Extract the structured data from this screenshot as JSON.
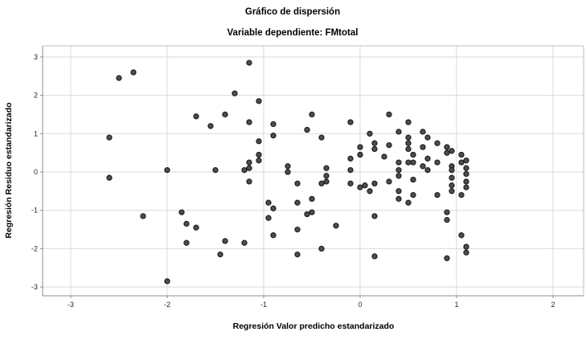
{
  "chart_data": {
    "type": "scatter",
    "title": "Gráfico de dispersión",
    "subtitle": "Variable dependiente: FMtotal",
    "xlabel": "Regresión Valor predicho estandarizado",
    "ylabel": "Regresión Residuo estandarizado",
    "x_ticks": [
      -3,
      -2,
      -1,
      0,
      1,
      2
    ],
    "y_ticks": [
      3,
      2,
      1,
      0,
      -1,
      -2,
      -3
    ],
    "xlim": [
      -3.3,
      2.32
    ],
    "ylim": [
      -3.25,
      3.3
    ],
    "grid": true,
    "legend": "none",
    "marker": {
      "shape": "circle",
      "fill": "#4d4d4d",
      "stroke": "#1a1a1a",
      "radius": 3.1
    },
    "colors": {
      "background": "#ffffff",
      "gridline": "#d9d9d9",
      "axis_line": "#8c8c8c",
      "frame_line": "#bfbfbf",
      "text": "#000000"
    },
    "points": [
      [
        -2.6,
        0.9
      ],
      [
        -2.6,
        -0.15
      ],
      [
        -2.5,
        2.45
      ],
      [
        -2.35,
        2.6
      ],
      [
        -2.25,
        -1.15
      ],
      [
        -2.0,
        0.05
      ],
      [
        -2.0,
        -2.85
      ],
      [
        -1.85,
        -1.05
      ],
      [
        -1.8,
        -1.35
      ],
      [
        -1.8,
        -1.85
      ],
      [
        -1.7,
        1.45
      ],
      [
        -1.7,
        -1.45
      ],
      [
        -1.55,
        1.2
      ],
      [
        -1.5,
        0.05
      ],
      [
        -1.45,
        -2.15
      ],
      [
        -1.4,
        1.5
      ],
      [
        -1.4,
        -1.8
      ],
      [
        -1.3,
        2.05
      ],
      [
        -1.2,
        0.05
      ],
      [
        -1.2,
        -1.85
      ],
      [
        -1.15,
        2.85
      ],
      [
        -1.15,
        1.3
      ],
      [
        -1.15,
        0.25
      ],
      [
        -1.15,
        0.1
      ],
      [
        -1.15,
        -0.25
      ],
      [
        -1.05,
        1.85
      ],
      [
        -1.05,
        0.8
      ],
      [
        -1.05,
        0.45
      ],
      [
        -1.05,
        0.3
      ],
      [
        -0.95,
        -0.8
      ],
      [
        -0.95,
        -1.2
      ],
      [
        -0.9,
        1.25
      ],
      [
        -0.9,
        0.95
      ],
      [
        -0.9,
        -0.95
      ],
      [
        -0.9,
        -1.65
      ],
      [
        -0.75,
        0.15
      ],
      [
        -0.75,
        0.0
      ],
      [
        -0.65,
        -0.3
      ],
      [
        -0.65,
        -0.8
      ],
      [
        -0.65,
        -1.5
      ],
      [
        -0.65,
        -2.15
      ],
      [
        -0.55,
        1.1
      ],
      [
        -0.55,
        -1.1
      ],
      [
        -0.5,
        1.5
      ],
      [
        -0.5,
        -0.7
      ],
      [
        -0.5,
        -1.05
      ],
      [
        -0.4,
        0.9
      ],
      [
        -0.4,
        -0.3
      ],
      [
        -0.4,
        -2.0
      ],
      [
        -0.35,
        0.1
      ],
      [
        -0.35,
        -0.1
      ],
      [
        -0.35,
        -0.25
      ],
      [
        -0.25,
        -1.4
      ],
      [
        -0.1,
        1.3
      ],
      [
        -0.1,
        0.35
      ],
      [
        -0.1,
        0.05
      ],
      [
        -0.1,
        -0.3
      ],
      [
        0.0,
        0.65
      ],
      [
        0.0,
        0.45
      ],
      [
        0.0,
        -0.4
      ],
      [
        0.05,
        -0.35
      ],
      [
        0.1,
        1.0
      ],
      [
        0.1,
        -0.5
      ],
      [
        0.15,
        0.75
      ],
      [
        0.15,
        0.6
      ],
      [
        0.15,
        -0.3
      ],
      [
        0.15,
        -1.15
      ],
      [
        0.15,
        -2.2
      ],
      [
        0.25,
        0.4
      ],
      [
        0.3,
        1.5
      ],
      [
        0.3,
        0.7
      ],
      [
        0.3,
        -0.25
      ],
      [
        0.4,
        1.05
      ],
      [
        0.4,
        0.25
      ],
      [
        0.4,
        0.05
      ],
      [
        0.4,
        -0.1
      ],
      [
        0.4,
        -0.5
      ],
      [
        0.4,
        -0.7
      ],
      [
        0.5,
        1.3
      ],
      [
        0.5,
        0.9
      ],
      [
        0.5,
        0.75
      ],
      [
        0.5,
        0.6
      ],
      [
        0.5,
        0.25
      ],
      [
        0.5,
        -0.8
      ],
      [
        0.55,
        0.45
      ],
      [
        0.55,
        0.25
      ],
      [
        0.55,
        -0.2
      ],
      [
        0.55,
        -0.6
      ],
      [
        0.65,
        1.05
      ],
      [
        0.65,
        0.65
      ],
      [
        0.65,
        0.15
      ],
      [
        0.7,
        0.9
      ],
      [
        0.7,
        0.35
      ],
      [
        0.7,
        0.05
      ],
      [
        0.8,
        0.75
      ],
      [
        0.8,
        0.25
      ],
      [
        0.8,
        -0.6
      ],
      [
        0.9,
        0.65
      ],
      [
        0.9,
        0.5
      ],
      [
        0.9,
        -1.05
      ],
      [
        0.9,
        -1.25
      ],
      [
        0.9,
        -2.25
      ],
      [
        0.95,
        0.55
      ],
      [
        0.95,
        0.15
      ],
      [
        0.95,
        0.05
      ],
      [
        0.95,
        -0.15
      ],
      [
        0.95,
        -0.35
      ],
      [
        0.95,
        -0.5
      ],
      [
        1.05,
        0.45
      ],
      [
        1.05,
        0.25
      ],
      [
        1.05,
        -0.6
      ],
      [
        1.05,
        -1.65
      ],
      [
        1.1,
        0.3
      ],
      [
        1.1,
        0.1
      ],
      [
        1.1,
        -0.05
      ],
      [
        1.1,
        -0.25
      ],
      [
        1.1,
        -0.4
      ],
      [
        1.1,
        -1.95
      ],
      [
        1.1,
        -2.1
      ]
    ]
  }
}
